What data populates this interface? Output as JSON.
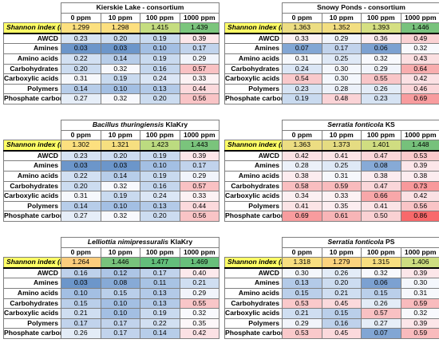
{
  "columns": [
    "0 ppm",
    "10 ppm",
    "100 ppm",
    "1000 ppm"
  ],
  "row_labels": [
    "AWCD",
    "Amines",
    "Amino acids",
    "Carbohydrates",
    "Carboxylic acids",
    "Polymers",
    "Phosphate carbon"
  ],
  "shannon_label": "Shannon index (H)",
  "colors": {
    "shannon_row_label": "#ffff66",
    "shannon_scale": [
      "#f8696b",
      "#ffeb84",
      "#63be7b"
    ],
    "value_scale": [
      "#5a8ac6",
      "#fcfcff",
      "#f8696b"
    ]
  },
  "panels": [
    {
      "title_italic": "",
      "title_suffix": "Kierskie Lake - consortium",
      "shannon": [
        "1.299",
        "1.298",
        "1.415",
        "1.439"
      ],
      "shannon_colors": [
        "#fce07f",
        "#fcdf7f",
        "#c5dd80",
        "#7bc57c"
      ],
      "rows": [
        [
          "0.23",
          "0.20",
          "0.19",
          "0.39"
        ],
        [
          "0.03",
          "0.03",
          "0.10",
          "0.17"
        ],
        [
          "0.22",
          "0.14",
          "0.19",
          "0.29"
        ],
        [
          "0.20",
          "0.32",
          "0.16",
          "0.57"
        ],
        [
          "0.31",
          "0.19",
          "0.24",
          "0.33"
        ],
        [
          "0.14",
          "0.10",
          "0.13",
          "0.44"
        ],
        [
          "0.27",
          "0.32",
          "0.20",
          "0.56"
        ]
      ],
      "cell_colors": [
        [
          "#d6e3f3",
          "#ccdcf0",
          "#c9daef",
          "#fce6e9"
        ],
        [
          "#6c96ca",
          "#6c96ca",
          "#a3bfe3",
          "#c1d3ec"
        ],
        [
          "#d2e0f2",
          "#b7cde9",
          "#c9daef",
          "#f1f4fb"
        ],
        [
          "#ccdcf0",
          "#f8f9fd",
          "#c4d6ed",
          "#f9c1c3"
        ],
        [
          "#f6f8fc",
          "#c9daef",
          "#dbe6f5",
          "#fcf2f4"
        ],
        [
          "#b7cde9",
          "#a3bfe3",
          "#b3cae8",
          "#fbd9dc"
        ],
        [
          "#e6eef8",
          "#f8f9fd",
          "#ccdcf0",
          "#f9c4c6"
        ]
      ]
    },
    {
      "title_italic": "",
      "title_suffix": "Snowy Ponds - consortium",
      "shannon": [
        "1.363",
        "1.352",
        "1.393",
        "1.446"
      ],
      "shannon_colors": [
        "#ecdd82",
        "#f2de81",
        "#d5df82",
        "#78c27c"
      ],
      "rows": [
        [
          "0.33",
          "0.29",
          "0.36",
          "0.49"
        ],
        [
          "0.07",
          "0.17",
          "0.06",
          "0.32"
        ],
        [
          "0.31",
          "0.25",
          "0.32",
          "0.43"
        ],
        [
          "0.24",
          "0.30",
          "0.29",
          "0.64"
        ],
        [
          "0.54",
          "0.30",
          "0.55",
          "0.42"
        ],
        [
          "0.23",
          "0.28",
          "0.26",
          "0.46"
        ],
        [
          "0.19",
          "0.48",
          "0.23",
          "0.69"
        ]
      ],
      "cell_colors": [
        [
          "#fcf2f4",
          "#f1f4fb",
          "#fcecef",
          "#fad1d3"
        ],
        [
          "#82a6d4",
          "#c1d3ec",
          "#7ca1d1",
          "#f8f9fd"
        ],
        [
          "#f6f8fc",
          "#dfe9f6",
          "#f8f9fd",
          "#fbdfe1"
        ],
        [
          "#dbe6f5",
          "#f4f7fc",
          "#f1f4fb",
          "#f8adae"
        ],
        [
          "#f9c9cb",
          "#f4f7fc",
          "#f9c6c8",
          "#fbe1e4"
        ],
        [
          "#d6e3f3",
          "#ecf1f9",
          "#e3ecf7",
          "#fbd6d9"
        ],
        [
          "#c9daef",
          "#fad3d6",
          "#d6e3f3",
          "#f89c9e"
        ]
      ]
    },
    {
      "title_italic": "Bacillus thuringiensis",
      "title_suffix": " KlaKry",
      "shannon": [
        "1.302",
        "1.321",
        "1.423",
        "1.443"
      ],
      "shannon_colors": [
        "#fce07f",
        "#f6df80",
        "#bcdb80",
        "#7ac47c"
      ],
      "rows": [
        [
          "0.23",
          "0.20",
          "0.19",
          "0.39"
        ],
        [
          "0.03",
          "0.03",
          "0.10",
          "0.17"
        ],
        [
          "0.22",
          "0.14",
          "0.19",
          "0.29"
        ],
        [
          "0.20",
          "0.32",
          "0.16",
          "0.57"
        ],
        [
          "0.31",
          "0.19",
          "0.24",
          "0.33"
        ],
        [
          "0.14",
          "0.10",
          "0.13",
          "0.44"
        ],
        [
          "0.27",
          "0.32",
          "0.20",
          "0.56"
        ]
      ],
      "cell_colors": [
        [
          "#d6e3f3",
          "#ccdcf0",
          "#c9daef",
          "#fce6e9"
        ],
        [
          "#6c96ca",
          "#6c96ca",
          "#a3bfe3",
          "#c1d3ec"
        ],
        [
          "#d2e0f2",
          "#b7cde9",
          "#c9daef",
          "#f1f4fb"
        ],
        [
          "#ccdcf0",
          "#f8f9fd",
          "#c4d6ed",
          "#f9c1c3"
        ],
        [
          "#f6f8fc",
          "#c9daef",
          "#dbe6f5",
          "#fcf2f4"
        ],
        [
          "#b7cde9",
          "#a3bfe3",
          "#b3cae8",
          "#fbd9dc"
        ],
        [
          "#e6eef8",
          "#f8f9fd",
          "#ccdcf0",
          "#f9c4c6"
        ]
      ]
    },
    {
      "title_italic": "Serratia fonticola",
      "title_suffix": " KS",
      "shannon": [
        "1.363",
        "1.373",
        "1.401",
        "1.448"
      ],
      "shannon_colors": [
        "#ecdd82",
        "#e5dc82",
        "#d0dd81",
        "#76c17b"
      ],
      "rows": [
        [
          "0.42",
          "0.41",
          "0.47",
          "0.53"
        ],
        [
          "0.28",
          "0.25",
          "0.08",
          "0.39"
        ],
        [
          "0.38",
          "0.31",
          "0.38",
          "0.38"
        ],
        [
          "0.58",
          "0.59",
          "0.47",
          "0.73"
        ],
        [
          "0.34",
          "0.33",
          "0.66",
          "0.42"
        ],
        [
          "0.41",
          "0.35",
          "0.41",
          "0.56"
        ],
        [
          "0.69",
          "0.61",
          "0.50",
          "0.86"
        ]
      ],
      "cell_colors": [
        [
          "#fbe1e4",
          "#fbe4e6",
          "#fad6d9",
          "#fac9cb"
        ],
        [
          "#ecf1f9",
          "#dfe9f6",
          "#87aad6",
          "#fce6e9"
        ],
        [
          "#fcecef",
          "#f6f8fc",
          "#fcecef",
          "#fcecef"
        ],
        [
          "#f9bec0",
          "#f9bbbd",
          "#fad6d9",
          "#f8999b"
        ],
        [
          "#fcf0f2",
          "#fcf2f4",
          "#f8a7a9",
          "#fbe1e4"
        ],
        [
          "#fbe4e6",
          "#fcedf0",
          "#fbe4e6",
          "#f9c4c6"
        ],
        [
          "#f89c9e",
          "#f8b5b7",
          "#fad1d3",
          "#f8696b"
        ]
      ]
    },
    {
      "title_italic": "Lelliottia nimipressuralis",
      "title_suffix": " KlaKry",
      "shannon": [
        "1.264",
        "1.446",
        "1.477",
        "1.469"
      ],
      "shannon_colors": [
        "#fbcd7d",
        "#78c27c",
        "#63be7b",
        "#68bf7b"
      ],
      "rows": [
        [
          "0.16",
          "0.12",
          "0.17",
          "0.40"
        ],
        [
          "0.03",
          "0.08",
          "0.11",
          "0.21"
        ],
        [
          "0.10",
          "0.15",
          "0.13",
          "0.29"
        ],
        [
          "0.15",
          "0.10",
          "0.13",
          "0.55"
        ],
        [
          "0.21",
          "0.10",
          "0.19",
          "0.32"
        ],
        [
          "0.17",
          "0.17",
          "0.22",
          "0.35"
        ],
        [
          "0.26",
          "0.17",
          "0.14",
          "0.42"
        ]
      ],
      "cell_colors": [
        [
          "#bed1eb",
          "#adc5e6",
          "#c1d3ec",
          "#fce9ec"
        ],
        [
          "#6c96ca",
          "#87aad6",
          "#a8c3e4",
          "#cfdef1"
        ],
        [
          "#a3bfe3",
          "#bacfea",
          "#b3cae8",
          "#f1f4fb"
        ],
        [
          "#bacfea",
          "#a3bfe3",
          "#b3cae8",
          "#f9c6c8"
        ],
        [
          "#cfdef1",
          "#a3bfe3",
          "#c9daef",
          "#f8f9fd"
        ],
        [
          "#c1d3ec",
          "#c1d3ec",
          "#d2e0f2",
          "#fcf7f9"
        ],
        [
          "#e3ecf7",
          "#c1d3ec",
          "#b7cde9",
          "#fbe1e4"
        ]
      ]
    },
    {
      "title_italic": "Serratia fonticola",
      "title_suffix": " PS",
      "shannon": [
        "1.318",
        "1.279",
        "1.315",
        "1.406"
      ],
      "shannon_colors": [
        "#f7df80",
        "#fbd37e",
        "#f8df80",
        "#cddd81"
      ],
      "rows": [
        [
          "0.30",
          "0.26",
          "0.32",
          "0.39"
        ],
        [
          "0.13",
          "0.20",
          "0.06",
          "0.30"
        ],
        [
          "0.15",
          "0.21",
          "0.15",
          "0.31"
        ],
        [
          "0.53",
          "0.45",
          "0.26",
          "0.59"
        ],
        [
          "0.21",
          "0.15",
          "0.57",
          "0.32"
        ],
        [
          "0.29",
          "0.16",
          "0.27",
          "0.39"
        ],
        [
          "0.53",
          "0.45",
          "0.07",
          "0.59"
        ]
      ],
      "cell_colors": [
        [
          "#f4f7fc",
          "#e3ecf7",
          "#f8f9fd",
          "#fce6e9"
        ],
        [
          "#b3cae8",
          "#ccdcf0",
          "#7ca1d1",
          "#f4f7fc"
        ],
        [
          "#bacfea",
          "#cfdef1",
          "#bacfea",
          "#f6f8fc"
        ],
        [
          "#fac9cb",
          "#fbd9dc",
          "#e3ecf7",
          "#f9bbbd"
        ],
        [
          "#cfdef1",
          "#bacfea",
          "#f9c1c3",
          "#f8f9fd"
        ],
        [
          "#f1f4fb",
          "#bed1eb",
          "#e6eef8",
          "#fce6e9"
        ],
        [
          "#fac9cb",
          "#fbd9dc",
          "#82a6d4",
          "#f9bbbd"
        ]
      ]
    }
  ]
}
